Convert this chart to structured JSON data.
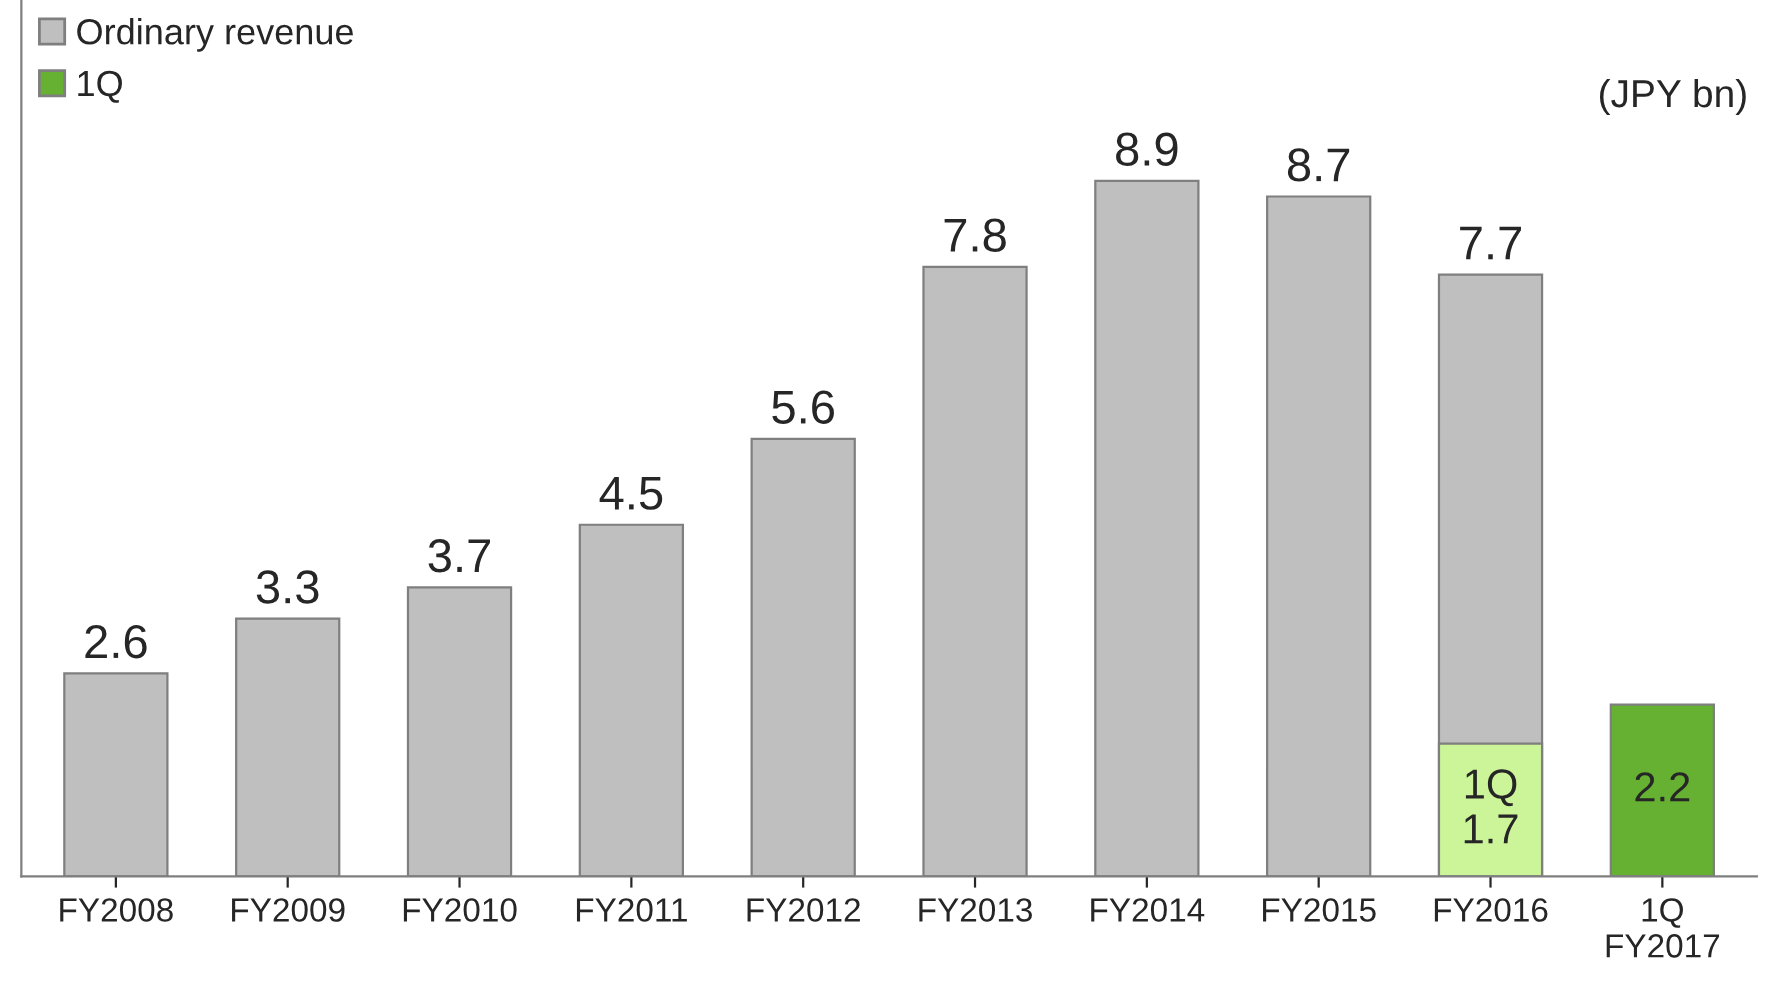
{
  "chart_data": {
    "type": "bar",
    "categories": [
      "FY2008",
      "FY2009",
      "FY2010",
      "FY2011",
      "FY2012",
      "FY2013",
      "FY2014",
      "FY2015",
      "FY2016",
      "1Q\nFY2017"
    ],
    "series": [
      {
        "name": "Ordinary revenue",
        "color": "#bfbfbf",
        "values": [
          2.6,
          3.3,
          3.7,
          4.5,
          5.6,
          7.8,
          8.9,
          8.7,
          7.7,
          null
        ],
        "value_labels": [
          "2.6",
          "3.3",
          "3.7",
          "4.5",
          "5.6",
          "7.8",
          "8.9",
          "8.7",
          "7.7",
          null
        ]
      },
      {
        "name": "1Q",
        "color": "#66b032",
        "colors": [
          null,
          null,
          null,
          null,
          null,
          null,
          null,
          null,
          "#ccf59a",
          "#66b032"
        ],
        "values": [
          null,
          null,
          null,
          null,
          null,
          null,
          null,
          null,
          1.7,
          2.2
        ],
        "value_labels": [
          null,
          null,
          null,
          null,
          null,
          null,
          null,
          null,
          "1Q\n1.7",
          "2.2"
        ]
      }
    ],
    "annotations": [
      "(JPY bn)"
    ],
    "legend": "top left",
    "tick_labels": "x",
    "grid": false
  }
}
